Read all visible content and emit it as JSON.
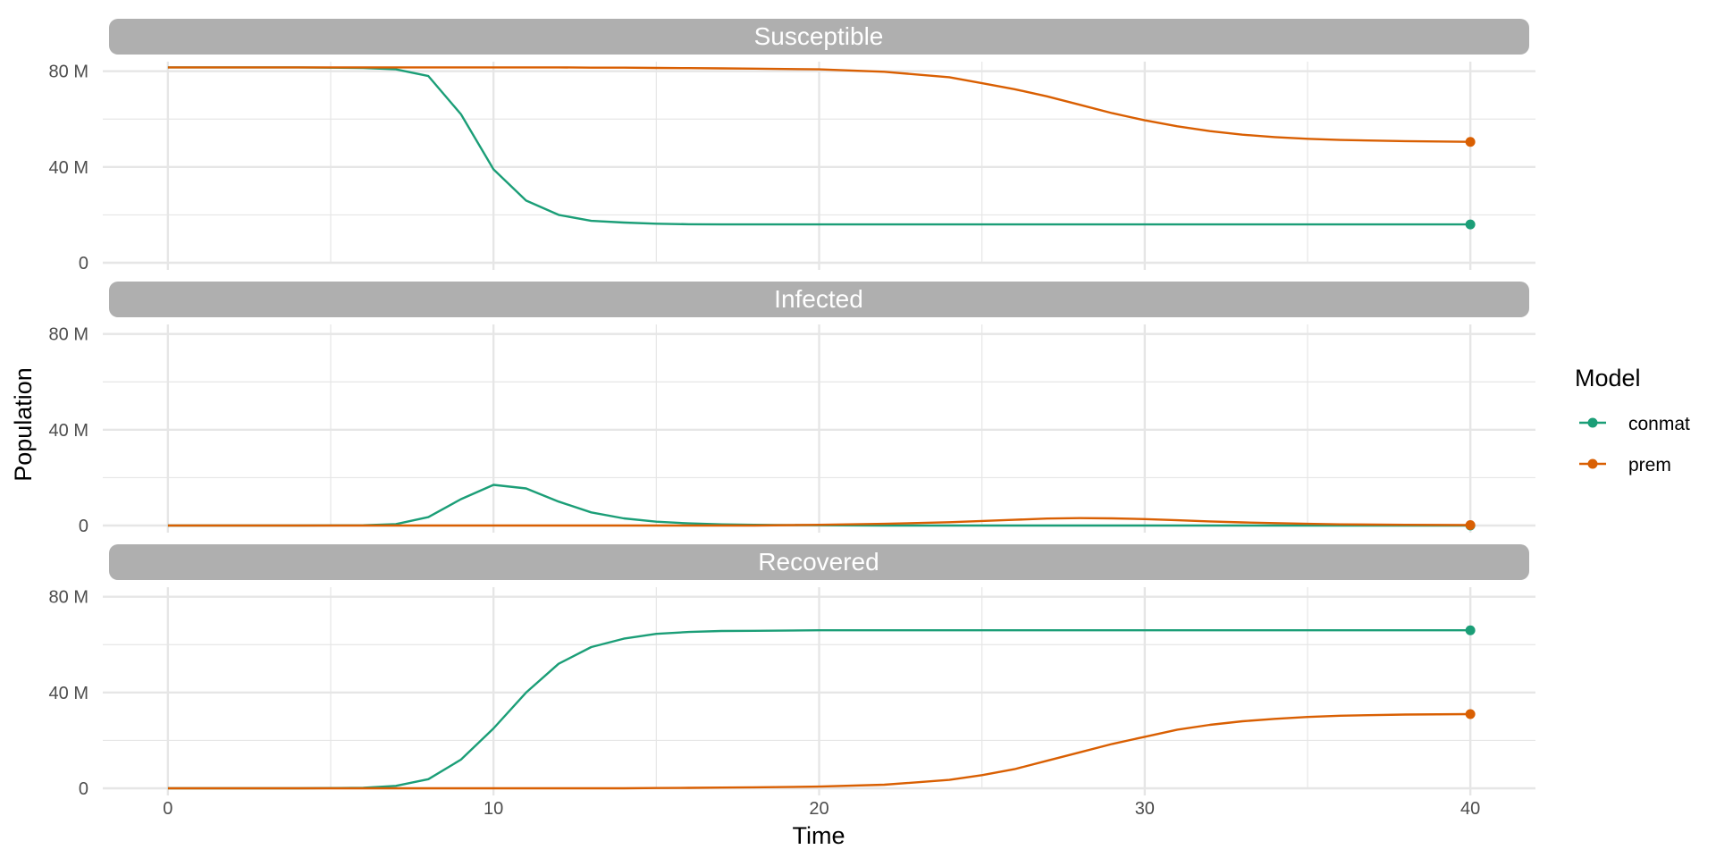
{
  "chart_data": {
    "type": "line",
    "xlabel": "Time",
    "ylabel": "Population",
    "xlim": [
      -2,
      42
    ],
    "ylim": [
      0,
      84000000
    ],
    "x_ticks": [
      0,
      10,
      20,
      30,
      40
    ],
    "x_tick_labels": [
      "0",
      "10",
      "20",
      "30",
      "40"
    ],
    "y_ticks": [
      0,
      40000000,
      80000000
    ],
    "y_tick_labels": [
      "0",
      "40 M",
      "80 M"
    ],
    "grid": true,
    "legend": {
      "title": "Model",
      "position": "right",
      "entries": [
        "conmat",
        "prem"
      ]
    },
    "colors": {
      "conmat": "#1b9e77",
      "prem": "#d95f02",
      "strip": "#afafaf",
      "grid": "#e6e6e6"
    },
    "x": [
      0,
      2,
      4,
      6,
      7,
      8,
      9,
      10,
      11,
      12,
      13,
      14,
      15,
      16,
      17,
      18,
      20,
      22,
      24,
      25,
      26,
      27,
      28,
      29,
      30,
      31,
      32,
      33,
      34,
      35,
      36,
      38,
      40
    ],
    "panels": [
      {
        "title": "Susceptible",
        "series": [
          {
            "name": "conmat",
            "values": [
              81600000,
              81600000,
              81600000,
              81400000,
              80800000,
              78000000,
              62000000,
              39000000,
              26000000,
              20000000,
              17500000,
              16800000,
              16300000,
              16100000,
              16000000,
              16000000,
              16000000,
              16000000,
              16000000,
              16000000,
              16000000,
              16000000,
              16000000,
              16000000,
              16000000,
              16000000,
              16000000,
              16000000,
              16000000,
              16000000,
              16000000,
              16000000,
              16000000
            ]
          },
          {
            "name": "prem",
            "values": [
              81600000,
              81600000,
              81600000,
              81600000,
              81600000,
              81600000,
              81600000,
              81600000,
              81600000,
              81600000,
              81500000,
              81500000,
              81400000,
              81300000,
              81200000,
              81100000,
              80800000,
              79800000,
              77500000,
              75000000,
              72500000,
              69500000,
              66000000,
              62500000,
              59500000,
              57000000,
              55000000,
              53500000,
              52500000,
              51800000,
              51300000,
              50800000,
              50500000
            ]
          }
        ]
      },
      {
        "title": "Infected",
        "series": [
          {
            "name": "conmat",
            "values": [
              0,
              0,
              0,
              100000,
              600000,
              3500000,
              11000000,
              17000000,
              15500000,
              10000000,
              5500000,
              3000000,
              1600000,
              900000,
              500000,
              300000,
              100000,
              0,
              0,
              0,
              0,
              0,
              0,
              0,
              0,
              0,
              0,
              0,
              0,
              0,
              0,
              0,
              0
            ]
          },
          {
            "name": "prem",
            "values": [
              0,
              0,
              0,
              0,
              0,
              0,
              0,
              0,
              0,
              0,
              0,
              0,
              0,
              0,
              0,
              0,
              300000,
              700000,
              1400000,
              1900000,
              2400000,
              2900000,
              3100000,
              3000000,
              2700000,
              2200000,
              1700000,
              1300000,
              1000000,
              700000,
              500000,
              300000,
              200000
            ]
          }
        ]
      },
      {
        "title": "Recovered",
        "series": [
          {
            "name": "conmat",
            "values": [
              0,
              0,
              0,
              200000,
              1000000,
              3800000,
              12000000,
              25000000,
              40000000,
              52000000,
              59000000,
              62500000,
              64500000,
              65300000,
              65700000,
              65800000,
              66000000,
              66000000,
              66000000,
              66000000,
              66000000,
              66000000,
              66000000,
              66000000,
              66000000,
              66000000,
              66000000,
              66000000,
              66000000,
              66000000,
              66000000,
              66000000,
              66000000
            ]
          },
          {
            "name": "prem",
            "values": [
              0,
              0,
              0,
              0,
              0,
              0,
              0,
              0,
              0,
              0,
              0,
              0,
              100000,
              200000,
              300000,
              400000,
              700000,
              1500000,
              3500000,
              5500000,
              8000000,
              11500000,
              15000000,
              18500000,
              21500000,
              24500000,
              26500000,
              28000000,
              29000000,
              29800000,
              30300000,
              30800000,
              31000000
            ]
          }
        ]
      }
    ]
  }
}
